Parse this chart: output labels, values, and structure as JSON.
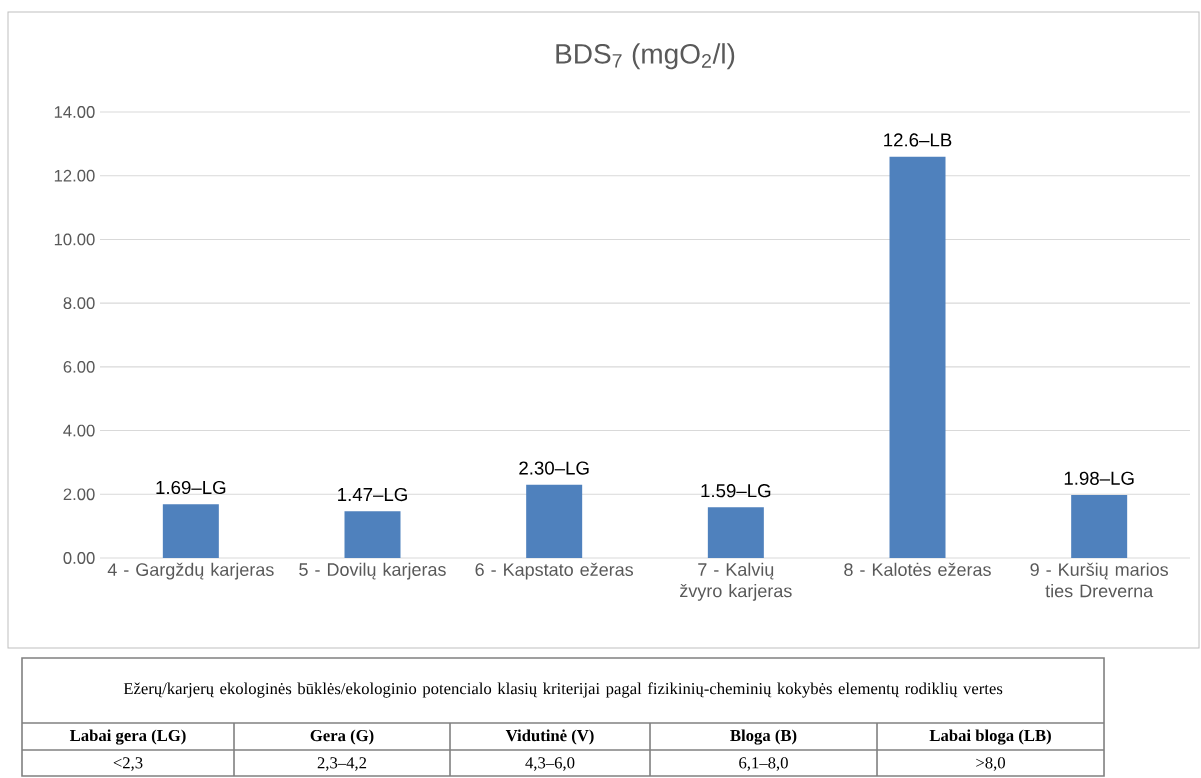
{
  "chart_data": {
    "type": "bar",
    "title": "BDS$_{7}$ (mgO$_{2}$/l)",
    "categories": [
      "4 - Gargždų karjeras",
      "5 - Dovilų karjeras",
      "6 - Kapstato ežeras",
      "7 - Kalvių žvyro karjeras",
      "8 - Kalotės ežeras",
      "9 - Kuršių marios ties Dreverna"
    ],
    "values": [
      1.69,
      1.47,
      2.3,
      1.59,
      12.6,
      1.98
    ],
    "value_labels": [
      "1.69–LG",
      "1.47–LG",
      "2.30–LG",
      "1.59–LG",
      "12.6–LB",
      "1.98–LG"
    ],
    "color": "#4f81bd",
    "ylim": [
      0,
      14
    ],
    "yticks": [
      {
        "value": 0,
        "label": "0.00"
      },
      {
        "value": 2,
        "label": "2.00"
      },
      {
        "value": 4,
        "label": "4.00"
      },
      {
        "value": 6,
        "label": "6.00"
      },
      {
        "value": 8,
        "label": "8.00"
      },
      {
        "value": 10,
        "label": "10.00"
      },
      {
        "value": 12,
        "label": "12.00"
      },
      {
        "value": 14,
        "label": "14.00"
      }
    ],
    "grid": "y",
    "annotations": [
      "Ežerų/karjerų ekologinės būklės/ekologinio potencialo klasių kriterijai pagal fizikinių-cheminių kokybės elementų rodiklių vertes",
      "Labai gera (LG)",
      "Gera (G)",
      "Vidutinė (V)",
      "Bloga (B)",
      "Labai bloga (LB)",
      "<2,3",
      "2,3–4,2",
      "4,3–6,0",
      "6,1–8,0",
      ">8,0"
    ]
  }
}
